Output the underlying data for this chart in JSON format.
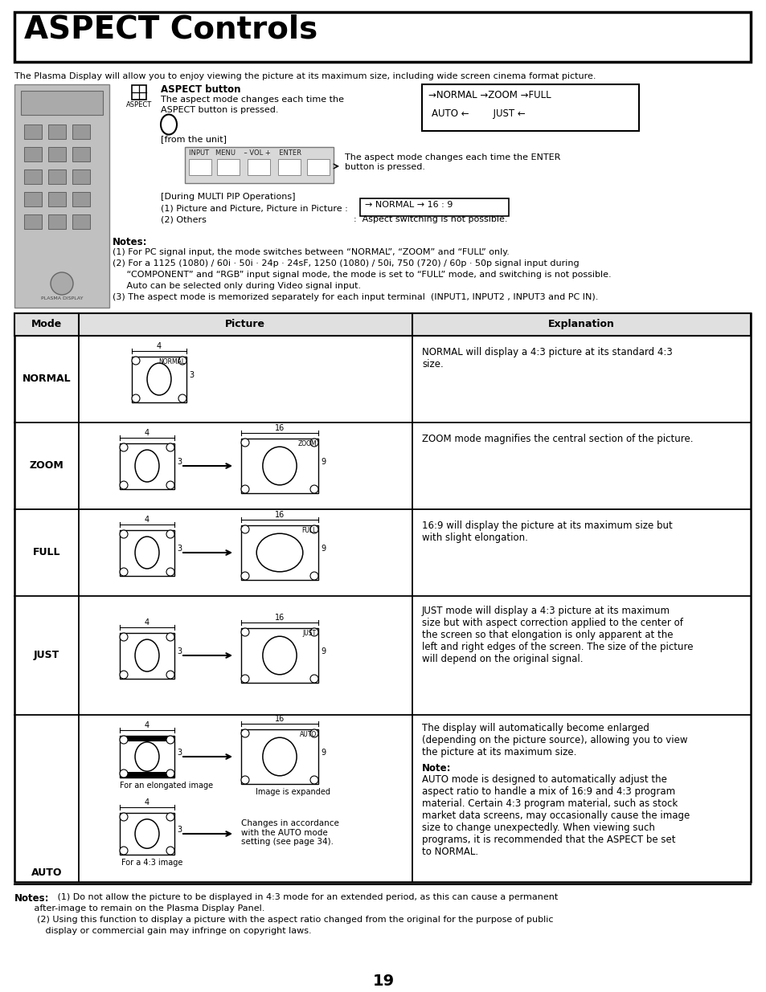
{
  "title": "ASPECT Controls",
  "page_number": "19",
  "intro_text": "The Plasma Display will allow you to enjoy viewing the picture at its maximum size, including wide screen cinema format picture.",
  "aspect_button_label": "ASPECT button",
  "aspect_button_desc1": "The aspect mode changes each time the",
  "aspect_button_desc2": "ASPECT button is pressed.",
  "from_unit": "[from the unit]",
  "enter_desc": "The aspect mode changes each time the ENTER\nbutton is pressed.",
  "multi_pip": "[During MULTI PIP Operations]",
  "pip_item1": "(1) Picture and Picture, Picture in Picture :",
  "pip_item2": "(2) Others",
  "pip_item2b": ":  Aspect switching is not possible.",
  "notes_header": "Notes:",
  "note1": "(1) For PC signal input, the mode switches between “NORMAL”, “ZOOM” and “FULL” only.",
  "note2": "(2) For a 1125 (1080) / 60i · 50i · 24p · 24sF, 1250 (1080) / 50i, 750 (720) / 60p · 50p signal input during",
  "note2b": "     “COMPONENT” and “RGB” input signal mode, the mode is set to “FULL” mode, and switching is not possible.",
  "note2c": "     Auto can be selected only during Video signal input.",
  "note3": "(3) The aspect mode is memorized separately for each input terminal  (INPUT1, INPUT2 , INPUT3 and PC IN).",
  "table_headers": [
    "Mode",
    "Picture",
    "Explanation"
  ],
  "normal_exp": "NORMAL will display a 4:3 picture at its standard 4:3\nsize.",
  "zoom_exp": "ZOOM mode magnifies the central section of the picture.",
  "full_exp": "16:9 will display the picture at its maximum size but\nwith slight elongation.",
  "just_exp": "JUST mode will display a 4:3 picture at its maximum\nsize but with aspect correction applied to the center of\nthe screen so that elongation is only apparent at the\nleft and right edges of the screen. The size of the picture\nwill depend on the original signal.",
  "auto_exp1": "The display will automatically become enlarged\n(depending on the picture source), allowing you to view\nthe picture at its maximum size.",
  "auto_note_header": "Note:",
  "auto_exp2": "AUTO mode is designed to automatically adjust the\naspect ratio to handle a mix of 16:9 and 4:3 program\nmaterial. Certain 4:3 program material, such as stock\nmarket data screens, may occasionally cause the image\nsize to change unexpectedly. When viewing such\nprograms, it is recommended that the ASPECT be set\nto NORMAL.",
  "footer_notes_bold": "Notes:",
  "footer_note1": " (1) Do not allow the picture to be displayed in 4:3 mode for an extended period, as this can cause a permanent",
  "footer_note1b": "       after-image to remain on the Plasma Display Panel.",
  "footer_note2": "        (2) Using this function to display a picture with the aspect ratio changed from the original for the purpose of public",
  "footer_note2b": "           display or commercial gain may infringe on copyright laws.",
  "bg_color": "#ffffff",
  "text_color": "#000000"
}
